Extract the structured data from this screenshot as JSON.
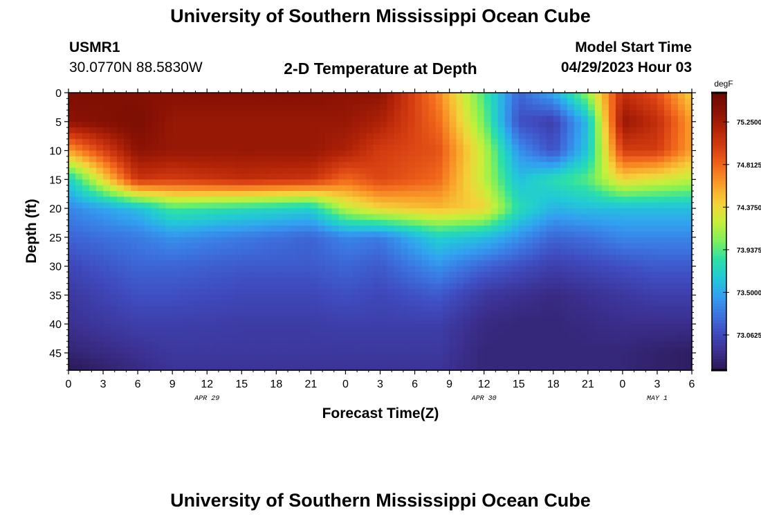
{
  "header": {
    "title": "University of Southern Mississippi Ocean Cube",
    "station_id": "USMR1",
    "coordinates": "30.0770N  88.5830W",
    "plot_title": "2-D Temperature at Depth",
    "model_start_label": "Model Start Time",
    "model_start_value": "04/29/2023 Hour 03"
  },
  "footer": {
    "title": "University of Southern Mississippi Ocean Cube"
  },
  "chart_data": {
    "type": "heatmap",
    "title": "2-D Temperature at Depth",
    "xlabel": "Forecast Time(Z)",
    "ylabel": "Depth (ft)",
    "x_ticks": [
      "0",
      "3",
      "6",
      "9",
      "12",
      "15",
      "18",
      "21",
      "0",
      "3",
      "6",
      "9",
      "12",
      "15",
      "18",
      "21",
      "0",
      "3",
      "6"
    ],
    "y_ticks": [
      "0",
      "5",
      "10",
      "15",
      "20",
      "25",
      "30",
      "35",
      "40",
      "45"
    ],
    "date_labels": [
      {
        "label": "APR 29",
        "x_hour": 12
      },
      {
        "label": "APR 30",
        "x_hour": 36
      },
      {
        "label": "MAY 1",
        "x_hour": 51
      }
    ],
    "xlim": [
      0,
      54
    ],
    "ylim": [
      0,
      48
    ],
    "colorbar": {
      "unit": "degF",
      "tick_values": [
        75.25,
        74.8125,
        74.375,
        73.9375,
        73.5,
        73.0625
      ],
      "tick_labels": [
        "75.2500",
        "74.8125",
        "74.3750",
        "73.9375",
        "73.5000",
        "73.0625"
      ],
      "range": [
        72.7,
        75.55
      ],
      "colors": [
        "#2b1852",
        "#3b2f8f",
        "#3f4bbf",
        "#3c74e0",
        "#32a0f0",
        "#22c9d6",
        "#2ce0a6",
        "#7ff05a",
        "#c6f03a",
        "#f4d23a",
        "#f9a02a",
        "#f26a1c",
        "#d73f12",
        "#b32408",
        "#8a1204",
        "#6b0a02"
      ]
    },
    "columns_hours": [
      0,
      6,
      9,
      15,
      21,
      24,
      27,
      32,
      36,
      39,
      42,
      45,
      48,
      51,
      54
    ],
    "depths_ft": [
      0,
      5,
      10,
      15,
      20,
      25,
      30,
      35,
      40,
      45,
      48
    ],
    "values_degF": [
      [
        75.45,
        75.4,
        75.38,
        75.38,
        75.38,
        75.35,
        75.35,
        74.7,
        73.9,
        73.2,
        73.5,
        74.1,
        75.1,
        74.9,
        74.4
      ],
      [
        75.35,
        75.45,
        75.3,
        75.3,
        75.3,
        75.3,
        75.2,
        74.8,
        74.0,
        73.1,
        73.0,
        73.6,
        75.3,
        75.1,
        74.6
      ],
      [
        74.6,
        75.35,
        75.3,
        75.3,
        75.3,
        75.2,
        75.0,
        74.9,
        74.2,
        73.4,
        73.1,
        73.65,
        75.0,
        75.0,
        74.6
      ],
      [
        73.7,
        75.05,
        75.0,
        75.1,
        75.05,
        74.8,
        74.95,
        74.8,
        74.2,
        73.6,
        73.8,
        73.95,
        74.4,
        74.3,
        74.2
      ],
      [
        73.35,
        73.6,
        73.9,
        73.8,
        73.7,
        74.2,
        74.4,
        74.5,
        74.4,
        73.8,
        73.55,
        73.6,
        73.6,
        73.6,
        73.6
      ],
      [
        73.2,
        73.3,
        73.4,
        73.3,
        73.2,
        73.35,
        73.3,
        73.7,
        73.6,
        73.4,
        73.2,
        73.25,
        73.35,
        73.35,
        73.35
      ],
      [
        73.05,
        73.2,
        73.2,
        73.15,
        73.15,
        73.2,
        73.15,
        73.4,
        73.2,
        73.1,
        73.0,
        73.05,
        73.1,
        73.15,
        73.15
      ],
      [
        72.95,
        73.1,
        73.1,
        73.05,
        73.05,
        73.1,
        73.05,
        73.15,
        72.95,
        72.9,
        72.85,
        72.9,
        72.95,
        73.0,
        73.0
      ],
      [
        72.9,
        73.0,
        73.0,
        72.98,
        72.98,
        73.0,
        73.0,
        73.0,
        72.85,
        72.82,
        72.82,
        72.85,
        72.88,
        72.88,
        72.88
      ],
      [
        72.8,
        72.9,
        72.95,
        72.95,
        72.95,
        72.95,
        72.95,
        72.95,
        72.82,
        72.82,
        72.82,
        72.82,
        72.82,
        72.78,
        72.75
      ],
      [
        72.7,
        72.85,
        72.92,
        72.92,
        72.92,
        72.92,
        72.92,
        72.92,
        72.82,
        72.82,
        72.82,
        72.82,
        72.82,
        72.78,
        72.75
      ]
    ]
  }
}
